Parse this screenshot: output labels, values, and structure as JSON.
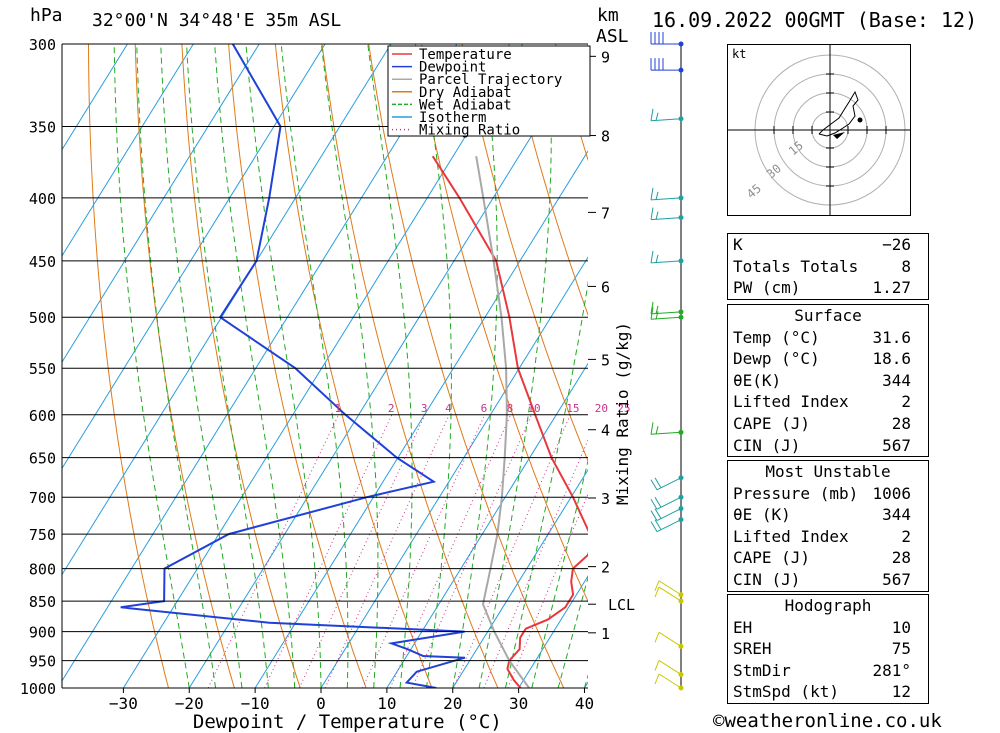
{
  "header": {
    "hpa_label": "hPa",
    "location": "32°00'N  34°48'E  35m  ASL",
    "km_label": "km",
    "asl_label": "ASL",
    "datetime": "16.09.2022  00GMT  (Base: 12)"
  },
  "chart_data": {
    "type": "skew-t",
    "xlabel": "Dewpoint / Temperature (°C)",
    "ylabel_left": "hPa",
    "ylabel_right": "Mixing Ratio (g/kg)",
    "x_ticks": [
      -30,
      -20,
      -10,
      0,
      10,
      20,
      30,
      40
    ],
    "x_tick_labels": [
      "−30",
      "−20",
      "−10",
      "0",
      "10",
      "20",
      "30",
      "40"
    ],
    "pressure_levels": [
      300,
      350,
      400,
      450,
      500,
      550,
      600,
      650,
      700,
      750,
      800,
      850,
      900,
      950,
      1000
    ],
    "km_ticks": [
      {
        "label": "1",
        "p": 902
      },
      {
        "label": "2",
        "p": 797
      },
      {
        "label": "3",
        "p": 701
      },
      {
        "label": "4",
        "p": 617
      },
      {
        "label": "5",
        "p": 541
      },
      {
        "label": "6",
        "p": 472
      },
      {
        "label": "7",
        "p": 411
      },
      {
        "label": "8",
        "p": 356
      },
      {
        "label": "9",
        "p": 307
      }
    ],
    "lcl": {
      "label": "LCL",
      "p": 855
    },
    "mixing_ratio_labels": [
      "1",
      "2",
      "3",
      "4",
      "6",
      "8",
      "10",
      "15",
      "20",
      "25"
    ],
    "legend": [
      {
        "name": "Temperature",
        "color": "#e8383d",
        "style": "solid"
      },
      {
        "name": "Dewpoint",
        "color": "#2040d8",
        "style": "solid"
      },
      {
        "name": "Parcel Trajectory",
        "color": "#a8a8a8",
        "style": "solid"
      },
      {
        "name": "Dry Adiabat",
        "color": "#e07a1a",
        "style": "solid"
      },
      {
        "name": "Wet Adiabat",
        "color": "#22aa22",
        "style": "dashed"
      },
      {
        "name": "Isotherm",
        "color": "#2a9ee0",
        "style": "solid"
      },
      {
        "name": "Mixing Ratio",
        "color": "#c8338a",
        "style": "dotted"
      }
    ],
    "series": [
      {
        "name": "Temperature",
        "points": [
          [
            1000,
            30.3
          ],
          [
            985,
            28.5
          ],
          [
            965,
            26.5
          ],
          [
            950,
            26.0
          ],
          [
            930,
            26.5
          ],
          [
            910,
            25.5
          ],
          [
            895,
            25.5
          ],
          [
            880,
            28.0
          ],
          [
            860,
            29.5
          ],
          [
            840,
            29.5
          ],
          [
            820,
            28.0
          ],
          [
            800,
            27.0
          ],
          [
            780,
            28.0
          ],
          [
            760,
            27.5
          ],
          [
            700,
            20.3
          ],
          [
            650,
            13.3
          ],
          [
            600,
            6.8
          ],
          [
            550,
            -0.2
          ],
          [
            500,
            -6.3
          ],
          [
            450,
            -13.6
          ],
          [
            400,
            -25.1
          ],
          [
            370,
            -33.1
          ]
        ]
      },
      {
        "name": "Dewpoint",
        "points": [
          [
            1000,
            17.5
          ],
          [
            990,
            12.5
          ],
          [
            970,
            13.0
          ],
          [
            945,
            19.0
          ],
          [
            942,
            12.5
          ],
          [
            930,
            9.5
          ],
          [
            920,
            6.5
          ],
          [
            900,
            16.5
          ],
          [
            885,
            -14.0
          ],
          [
            860,
            -38.0
          ],
          [
            850,
            -32.0
          ],
          [
            800,
            -35.0
          ],
          [
            750,
            -28.5
          ],
          [
            700,
            -11.0
          ],
          [
            680,
            -2.3
          ],
          [
            650,
            -10.2
          ],
          [
            600,
            -22.0
          ],
          [
            550,
            -34.0
          ],
          [
            500,
            -50.2
          ],
          [
            450,
            -50.0
          ],
          [
            400,
            -54.0
          ],
          [
            350,
            -59.0
          ],
          [
            300,
            -74.0
          ]
        ]
      },
      {
        "name": "Parcel Trajectory",
        "points": [
          [
            1000,
            31.6
          ],
          [
            950,
            26.0
          ],
          [
            900,
            21.0
          ],
          [
            855,
            16.7
          ],
          [
            800,
            14.5
          ],
          [
            750,
            12.3
          ],
          [
            700,
            9.5
          ],
          [
            650,
            6.2
          ],
          [
            600,
            2.5
          ],
          [
            550,
            -2.0
          ],
          [
            500,
            -7.5
          ],
          [
            450,
            -14.0
          ],
          [
            400,
            -21.5
          ],
          [
            370,
            -26.5
          ]
        ]
      }
    ]
  },
  "wind_barbs": [
    {
      "p": 1000,
      "color": "#c8c800"
    },
    {
      "p": 975,
      "color": "#c8c800"
    },
    {
      "p": 925,
      "color": "#c8c800"
    },
    {
      "p": 850,
      "color": "#c8c800"
    },
    {
      "p": 840,
      "color": "#c8c800"
    },
    {
      "p": 730,
      "color": "#20a0a0"
    },
    {
      "p": 715,
      "color": "#20a0a0"
    },
    {
      "p": 700,
      "color": "#20a0a0"
    },
    {
      "p": 675,
      "color": "#20a0a0"
    },
    {
      "p": 620,
      "color": "#22aa22"
    },
    {
      "p": 500,
      "color": "#22aa22"
    },
    {
      "p": 495,
      "color": "#22aa22"
    },
    {
      "p": 450,
      "color": "#20a0a0"
    },
    {
      "p": 415,
      "color": "#20a0a0"
    },
    {
      "p": 400,
      "color": "#20a0a0"
    },
    {
      "p": 345,
      "color": "#20a0a0"
    },
    {
      "p": 315,
      "color": "#2040d8"
    },
    {
      "p": 300,
      "color": "#2040d8"
    }
  ],
  "hodograph": {
    "unit": "kt",
    "ring_labels": [
      "15",
      "30",
      "45"
    ]
  },
  "stats": {
    "indices": [
      {
        "label": "K",
        "value": "−26"
      },
      {
        "label": "Totals Totals",
        "value": "8"
      },
      {
        "label": "PW (cm)",
        "value": "1.27"
      }
    ],
    "surface": {
      "title": "Surface",
      "rows": [
        {
          "label": "Temp (°C)",
          "value": "31.6"
        },
        {
          "label": "Dewp (°C)",
          "value": "18.6"
        },
        {
          "label": "θE(K)",
          "value": "344"
        },
        {
          "label": "Lifted Index",
          "value": "2"
        },
        {
          "label": "CAPE (J)",
          "value": "28"
        },
        {
          "label": "CIN (J)",
          "value": "567"
        }
      ]
    },
    "most_unstable": {
      "title": "Most Unstable",
      "rows": [
        {
          "label": "Pressure (mb)",
          "value": "1006"
        },
        {
          "label": "θE (K)",
          "value": "344"
        },
        {
          "label": "Lifted Index",
          "value": "2"
        },
        {
          "label": "CAPE (J)",
          "value": "28"
        },
        {
          "label": "CIN (J)",
          "value": "567"
        }
      ]
    },
    "hodograph": {
      "title": "Hodograph",
      "rows": [
        {
          "label": "EH",
          "value": "10"
        },
        {
          "label": "SREH",
          "value": "75"
        },
        {
          "label": "StmDir",
          "value": "281°"
        },
        {
          "label": "StmSpd (kt)",
          "value": "12"
        }
      ]
    }
  },
  "footer": {
    "copyright": "©weatheronline.co.uk"
  }
}
